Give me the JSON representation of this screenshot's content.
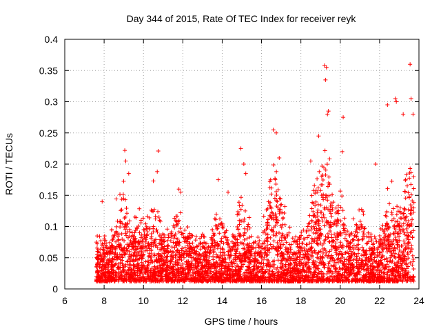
{
  "chart_data": {
    "type": "scatter",
    "title": "Day 344 of 2015, Rate Of TEC Index for receiver reyk",
    "xlabel": "GPS time / hours",
    "ylabel": "ROTI / TECUs",
    "xlim": [
      6,
      24
    ],
    "ylim": [
      0,
      0.4
    ],
    "x_ticks": [
      6,
      8,
      10,
      12,
      14,
      16,
      18,
      20,
      22,
      24
    ],
    "x_tick_labels": [
      "6",
      "8",
      "10",
      "12",
      "14",
      "16",
      "18",
      "20",
      "22",
      "24"
    ],
    "y_ticks": [
      0,
      0.05,
      0.1,
      0.15,
      0.2,
      0.25,
      0.3,
      0.35,
      0.4
    ],
    "y_tick_labels": [
      "0",
      "0.05",
      "0.1",
      "0.15",
      "0.2",
      "0.25",
      "0.3",
      "0.35",
      "0.4"
    ],
    "grid": true,
    "marker": "+",
    "marker_color": "#ff0000",
    "series": [
      {
        "name": "ROTI",
        "x_range": [
          7.6,
          23.75
        ],
        "typical_range": [
          0.01,
          0.1
        ],
        "notable_points": [
          {
            "x": 7.9,
            "y": 0.14
          },
          {
            "x": 9.05,
            "y": 0.222
          },
          {
            "x": 9.1,
            "y": 0.205
          },
          {
            "x": 9.25,
            "y": 0.185
          },
          {
            "x": 10.5,
            "y": 0.173
          },
          {
            "x": 10.75,
            "y": 0.221
          },
          {
            "x": 10.7,
            "y": 0.188
          },
          {
            "x": 11.8,
            "y": 0.16
          },
          {
            "x": 11.9,
            "y": 0.155
          },
          {
            "x": 13.8,
            "y": 0.175
          },
          {
            "x": 14.3,
            "y": 0.155
          },
          {
            "x": 14.95,
            "y": 0.225
          },
          {
            "x": 15.1,
            "y": 0.2
          },
          {
            "x": 15.2,
            "y": 0.185
          },
          {
            "x": 16.6,
            "y": 0.255
          },
          {
            "x": 16.75,
            "y": 0.25
          },
          {
            "x": 16.9,
            "y": 0.21
          },
          {
            "x": 18.5,
            "y": 0.205
          },
          {
            "x": 18.9,
            "y": 0.245
          },
          {
            "x": 19.2,
            "y": 0.358
          },
          {
            "x": 19.3,
            "y": 0.355
          },
          {
            "x": 19.25,
            "y": 0.335
          },
          {
            "x": 19.35,
            "y": 0.28
          },
          {
            "x": 19.4,
            "y": 0.285
          },
          {
            "x": 20.15,
            "y": 0.275
          },
          {
            "x": 20.1,
            "y": 0.22
          },
          {
            "x": 21.8,
            "y": 0.2
          },
          {
            "x": 22.4,
            "y": 0.295
          },
          {
            "x": 22.8,
            "y": 0.305
          },
          {
            "x": 22.85,
            "y": 0.3
          },
          {
            "x": 23.2,
            "y": 0.28
          },
          {
            "x": 23.55,
            "y": 0.36
          },
          {
            "x": 23.6,
            "y": 0.305
          },
          {
            "x": 23.7,
            "y": 0.28
          }
        ]
      }
    ]
  }
}
